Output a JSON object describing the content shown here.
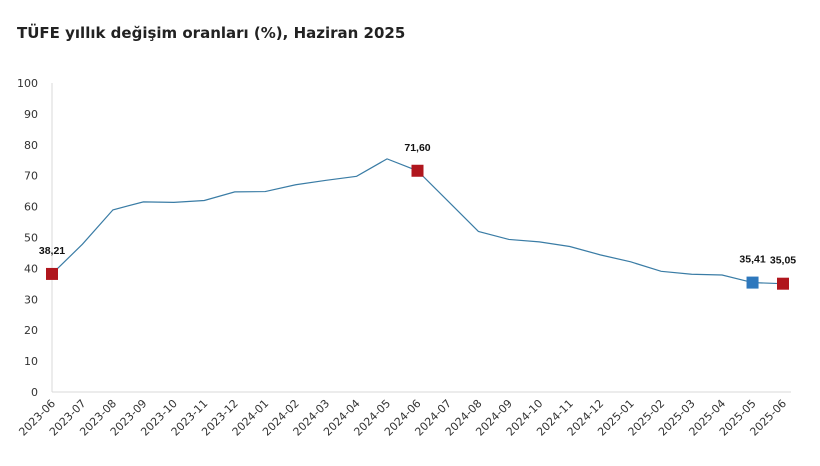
{
  "chart_data": {
    "type": "line",
    "title": "TÜFE yıllık değişim oranları (%), Haziran 2025",
    "xlabel": "",
    "ylabel": "",
    "ylim": [
      0,
      100
    ],
    "yticks": [
      "0",
      "10",
      "20",
      "30",
      "40",
      "50",
      "60",
      "70",
      "80",
      "90",
      "100"
    ],
    "grid": false,
    "categories": [
      "2023-06",
      "2023-07",
      "2023-08",
      "2023-09",
      "2023-10",
      "2023-11",
      "2023-12",
      "2024-01",
      "2024-02",
      "2024-03",
      "2024-04",
      "2024-05",
      "2024-06",
      "2024-07",
      "2024-08",
      "2024-09",
      "2024-10",
      "2024-11",
      "2024-12",
      "2025-01",
      "2025-02",
      "2025-03",
      "2025-04",
      "2025-05",
      "2025-06"
    ],
    "series": [
      {
        "values": [
          38.21,
          47.83,
          58.94,
          61.53,
          61.36,
          61.98,
          64.77,
          64.86,
          67.07,
          68.5,
          69.8,
          75.45,
          71.6,
          61.78,
          51.97,
          49.38,
          48.58,
          47.09,
          44.38,
          42.12,
          39.05,
          38.1,
          37.86,
          35.41,
          35.05
        ],
        "color": "#3a7ca5"
      }
    ],
    "highlighted_points": [
      {
        "category": "2023-06",
        "label": "38,21",
        "color": "#b0161d"
      },
      {
        "category": "2024-06",
        "label": "71,60",
        "color": "#b0161d"
      },
      {
        "category": "2025-05",
        "label": "35,41",
        "color": "#2e78bd"
      },
      {
        "category": "2025-06",
        "label": "35,05",
        "color": "#b0161d"
      }
    ]
  }
}
